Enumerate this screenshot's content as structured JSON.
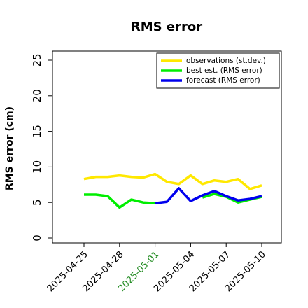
{
  "chart_data": {
    "type": "line",
    "title": "RMS error",
    "xlabel": "",
    "ylabel": "RMS error (cm)",
    "ylim": [
      0,
      25
    ],
    "yticks": [
      "0",
      "5",
      "10",
      "15",
      "20",
      "25"
    ],
    "x": [
      "2025-04-25",
      "2025-04-26",
      "2025-04-27",
      "2025-04-28",
      "2025-04-29",
      "2025-04-30",
      "2025-05-01",
      "2025-05-02",
      "2025-05-03",
      "2025-05-04",
      "2025-05-05",
      "2025-05-06",
      "2025-05-07",
      "2025-05-08",
      "2025-05-09",
      "2025-05-10"
    ],
    "xticks": [
      "2025-04-25",
      "2025-04-28",
      "2025-05-01",
      "2025-05-04",
      "2025-05-07",
      "2025-05-10"
    ],
    "xtick_colors": [
      "#000000",
      "#000000",
      "#228B22",
      "#000000",
      "#000000",
      "#000000"
    ],
    "grid": false,
    "legend_position": "top-right",
    "series": [
      {
        "name": "observations (st.dev.)",
        "color": "#FFE800",
        "values": [
          8.3,
          8.6,
          8.6,
          8.8,
          8.6,
          8.5,
          9.0,
          7.9,
          7.6,
          8.8,
          7.6,
          8.1,
          7.9,
          8.3,
          6.9,
          7.4
        ]
      },
      {
        "name": "best est. (RMS error)",
        "color": "#00EE00",
        "values": [
          6.1,
          6.1,
          5.9,
          4.3,
          5.4,
          5.0,
          4.9,
          null,
          null,
          null,
          5.7,
          6.2,
          5.8,
          5.0,
          5.4,
          5.8
        ]
      },
      {
        "name": "forecast (RMS error)",
        "color": "#0000EE",
        "values": [
          null,
          null,
          null,
          null,
          null,
          null,
          4.9,
          5.1,
          7.0,
          5.2,
          6.0,
          6.6,
          5.9,
          5.3,
          5.5,
          5.9
        ]
      }
    ]
  }
}
